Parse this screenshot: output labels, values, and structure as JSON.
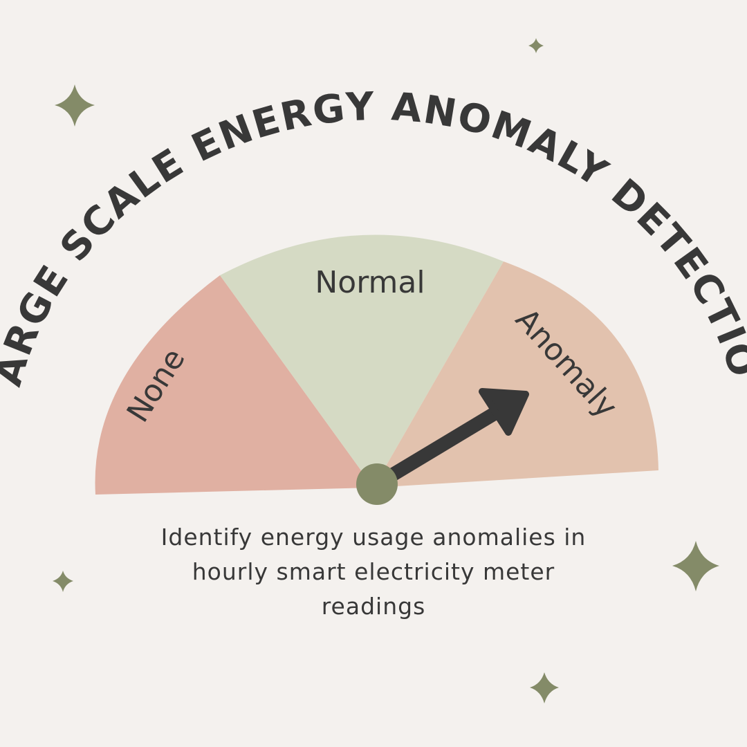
{
  "title": "LARGE SCALE ENERGY ANOMALY DETECTION",
  "gauge": {
    "segments": [
      {
        "label": "None",
        "color": "#e0b0a2"
      },
      {
        "label": "Normal",
        "color": "#d5dac4"
      },
      {
        "label": "Anomaly",
        "color": "#e2c2ae"
      }
    ],
    "pointer_level": "Anomaly",
    "needle_color": "#383838",
    "hub_color": "#848b68"
  },
  "description": {
    "line1": "Identify energy usage anomalies in",
    "line2": "hourly smart electricity meter",
    "line3": "readings"
  },
  "colors": {
    "background": "#f4f1ee",
    "text": "#383838",
    "sparkle": "#848b68"
  },
  "decorations": {
    "sparkle_icon": "four-point-star"
  }
}
